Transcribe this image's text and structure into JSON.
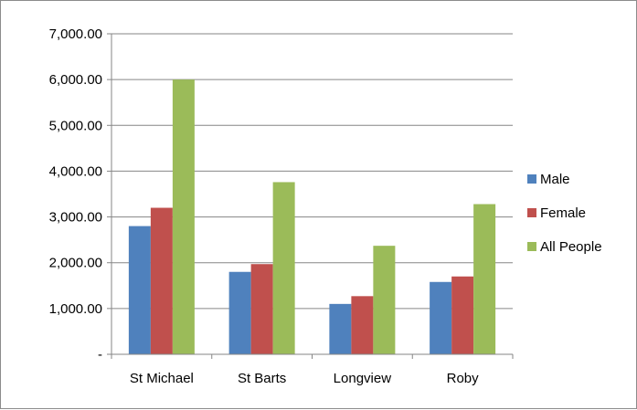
{
  "chart_data": {
    "type": "bar",
    "title": "",
    "xlabel": "",
    "ylabel": "",
    "categories": [
      "St Michael",
      "St Barts",
      "Longview",
      "Roby"
    ],
    "series": [
      {
        "name": "Male",
        "color": "#4f81bd",
        "values": [
          2800,
          1800,
          1100,
          1580
        ]
      },
      {
        "name": "Female",
        "color": "#c0504d",
        "values": [
          3200,
          1970,
          1270,
          1700
        ]
      },
      {
        "name": "All People",
        "color": "#9bbb59",
        "values": [
          6000,
          3760,
          2370,
          3280
        ]
      }
    ],
    "ylim": [
      0,
      7000
    ],
    "y_ticks": [
      {
        "value": 0,
        "label": "-"
      },
      {
        "value": 1000,
        "label": "1,000.00"
      },
      {
        "value": 2000,
        "label": "2,000.00"
      },
      {
        "value": 3000,
        "label": "3,000.00"
      },
      {
        "value": 4000,
        "label": "4,000.00"
      },
      {
        "value": 5000,
        "label": "5,000.00"
      },
      {
        "value": 6000,
        "label": "6,000.00"
      },
      {
        "value": 7000,
        "label": "7,000.00"
      }
    ],
    "grid": true,
    "legend_position": "right"
  }
}
